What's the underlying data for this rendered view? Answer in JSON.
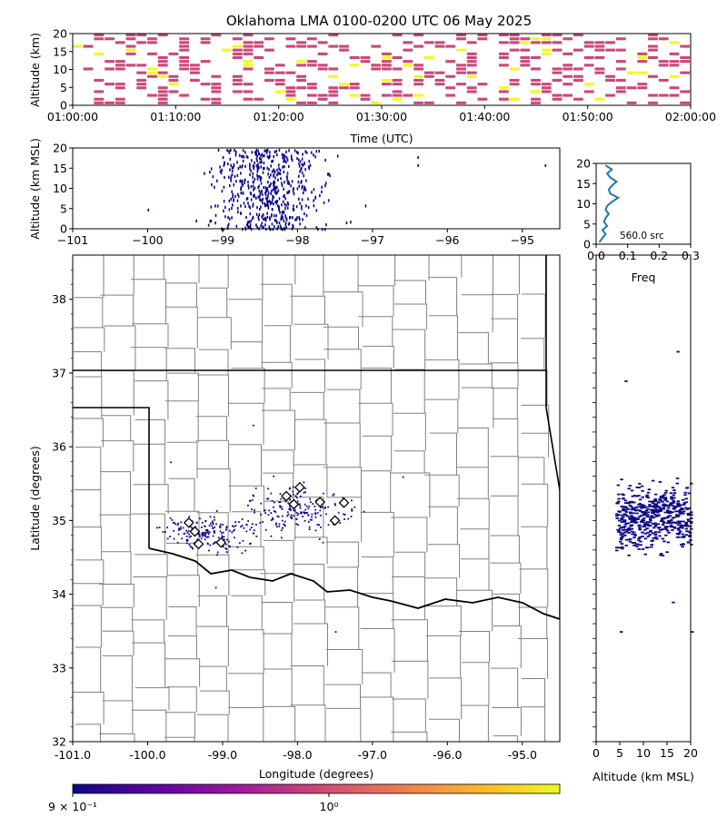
{
  "title": "Oklahoma LMA 0100-0200 UTC 06 May 2025",
  "colors": {
    "spine": "#000000",
    "source_dot": "#0d0887",
    "hist_line": "#1f77b4",
    "county": "#808080",
    "state": "#000000",
    "station_marker": "#000000"
  },
  "colorbar": {
    "stops": [
      "#0d0887",
      "#5c01a6",
      "#9c179e",
      "#cc4778",
      "#ed7953",
      "#fdb42f",
      "#f0f921"
    ],
    "labels": [
      "9 × 10⁻¹",
      "10⁰"
    ]
  },
  "chart_data": [
    {
      "panel": "time-height",
      "type": "heatmap",
      "xlabel": "Time (UTC)",
      "ylabel": "Altitude (km)",
      "xlim": [
        "01:00:00",
        "02:00:00"
      ],
      "ylim": [
        0,
        20
      ],
      "xticks": [
        "01:00:00",
        "01:10:00",
        "01:20:00",
        "01:30:00",
        "01:40:00",
        "01:50:00",
        "02:00:00"
      ],
      "yticks": [
        "0",
        "5",
        "10",
        "15",
        "20"
      ],
      "note": "colored cells = source density (pink ≈ 1, yellow higher)"
    },
    {
      "panel": "lon-alt",
      "type": "scatter",
      "ylabel": "Altitude (km MSL)",
      "xlim": [
        -101,
        -94.5
      ],
      "ylim": [
        0,
        20
      ],
      "xticks": [
        "−101",
        "−100",
        "−99",
        "−98",
        "−97",
        "−96",
        "−95"
      ],
      "yticks": [
        "0",
        "5",
        "10",
        "15",
        "20"
      ]
    },
    {
      "panel": "alt-histogram",
      "type": "line",
      "xlabel": "Freq",
      "annotation": "560.0 src",
      "xlim": [
        0,
        0.3
      ],
      "ylim": [
        0,
        20
      ],
      "xticks": [
        "0.0",
        "0.1",
        "0.2",
        "0.3"
      ],
      "yticks": [
        "0",
        "5",
        "10",
        "15",
        "20"
      ],
      "freq_by_altitude": [
        {
          "alt": 0.5,
          "f": 0.01
        },
        {
          "alt": 1.5,
          "f": 0.02
        },
        {
          "alt": 2.5,
          "f": 0.03
        },
        {
          "alt": 3.5,
          "f": 0.02
        },
        {
          "alt": 4.5,
          "f": 0.035
        },
        {
          "alt": 5.5,
          "f": 0.025
        },
        {
          "alt": 6.5,
          "f": 0.03
        },
        {
          "alt": 7.5,
          "f": 0.04
        },
        {
          "alt": 8.5,
          "f": 0.03
        },
        {
          "alt": 9.5,
          "f": 0.035
        },
        {
          "alt": 10.5,
          "f": 0.05
        },
        {
          "alt": 11.5,
          "f": 0.07
        },
        {
          "alt": 12.5,
          "f": 0.045
        },
        {
          "alt": 13.5,
          "f": 0.04
        },
        {
          "alt": 14.5,
          "f": 0.05
        },
        {
          "alt": 15.5,
          "f": 0.065
        },
        {
          "alt": 16.5,
          "f": 0.045
        },
        {
          "alt": 17.5,
          "f": 0.035
        },
        {
          "alt": 18.5,
          "f": 0.05
        },
        {
          "alt": 19.5,
          "f": 0.03
        }
      ]
    },
    {
      "panel": "plan-view",
      "type": "scatter",
      "xlabel": "Longitude (degrees)",
      "ylabel": "Latitude (degrees)",
      "xlim": [
        -101.0,
        -94.5
      ],
      "ylim": [
        32,
        38.6
      ],
      "xticks": [
        "-101.0",
        "-100.0",
        "-99.0",
        "-98.0",
        "-97.0",
        "-96.0",
        "-95.0"
      ],
      "yticks": [
        "32",
        "33",
        "34",
        "35",
        "36",
        "37",
        "38"
      ],
      "stations": [
        {
          "lon": -99.45,
          "lat": 34.97
        },
        {
          "lon": -99.37,
          "lat": 34.85
        },
        {
          "lon": -99.32,
          "lat": 34.68
        },
        {
          "lon": -99.02,
          "lat": 34.7
        },
        {
          "lon": -98.15,
          "lat": 35.33
        },
        {
          "lon": -98.05,
          "lat": 35.22
        },
        {
          "lon": -97.97,
          "lat": 35.45
        },
        {
          "lon": -97.7,
          "lat": 35.25
        },
        {
          "lon": -97.5,
          "lat": 35.0
        },
        {
          "lon": -97.38,
          "lat": 35.24
        }
      ]
    },
    {
      "panel": "alt-lat",
      "type": "scatter",
      "xlabel": "Altitude (km MSL)",
      "xlim": [
        0,
        20
      ],
      "xticks": [
        "0",
        "5",
        "10",
        "15",
        "20"
      ]
    }
  ]
}
